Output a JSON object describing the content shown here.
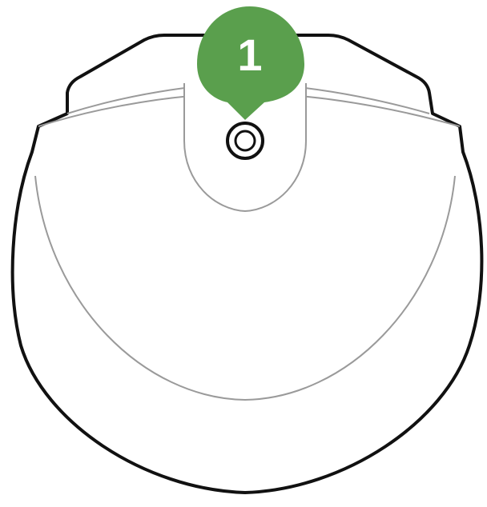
{
  "figure": {
    "callout": {
      "number": "1",
      "fill_color": "#5a9f4d",
      "text_color": "#ffffff",
      "points_to": "button-icon"
    },
    "colors": {
      "outline": "#111111",
      "inner_line": "#9a9a9a",
      "background": "#ffffff"
    },
    "icons": [
      "device-body",
      "button-icon",
      "callout-marker"
    ]
  }
}
